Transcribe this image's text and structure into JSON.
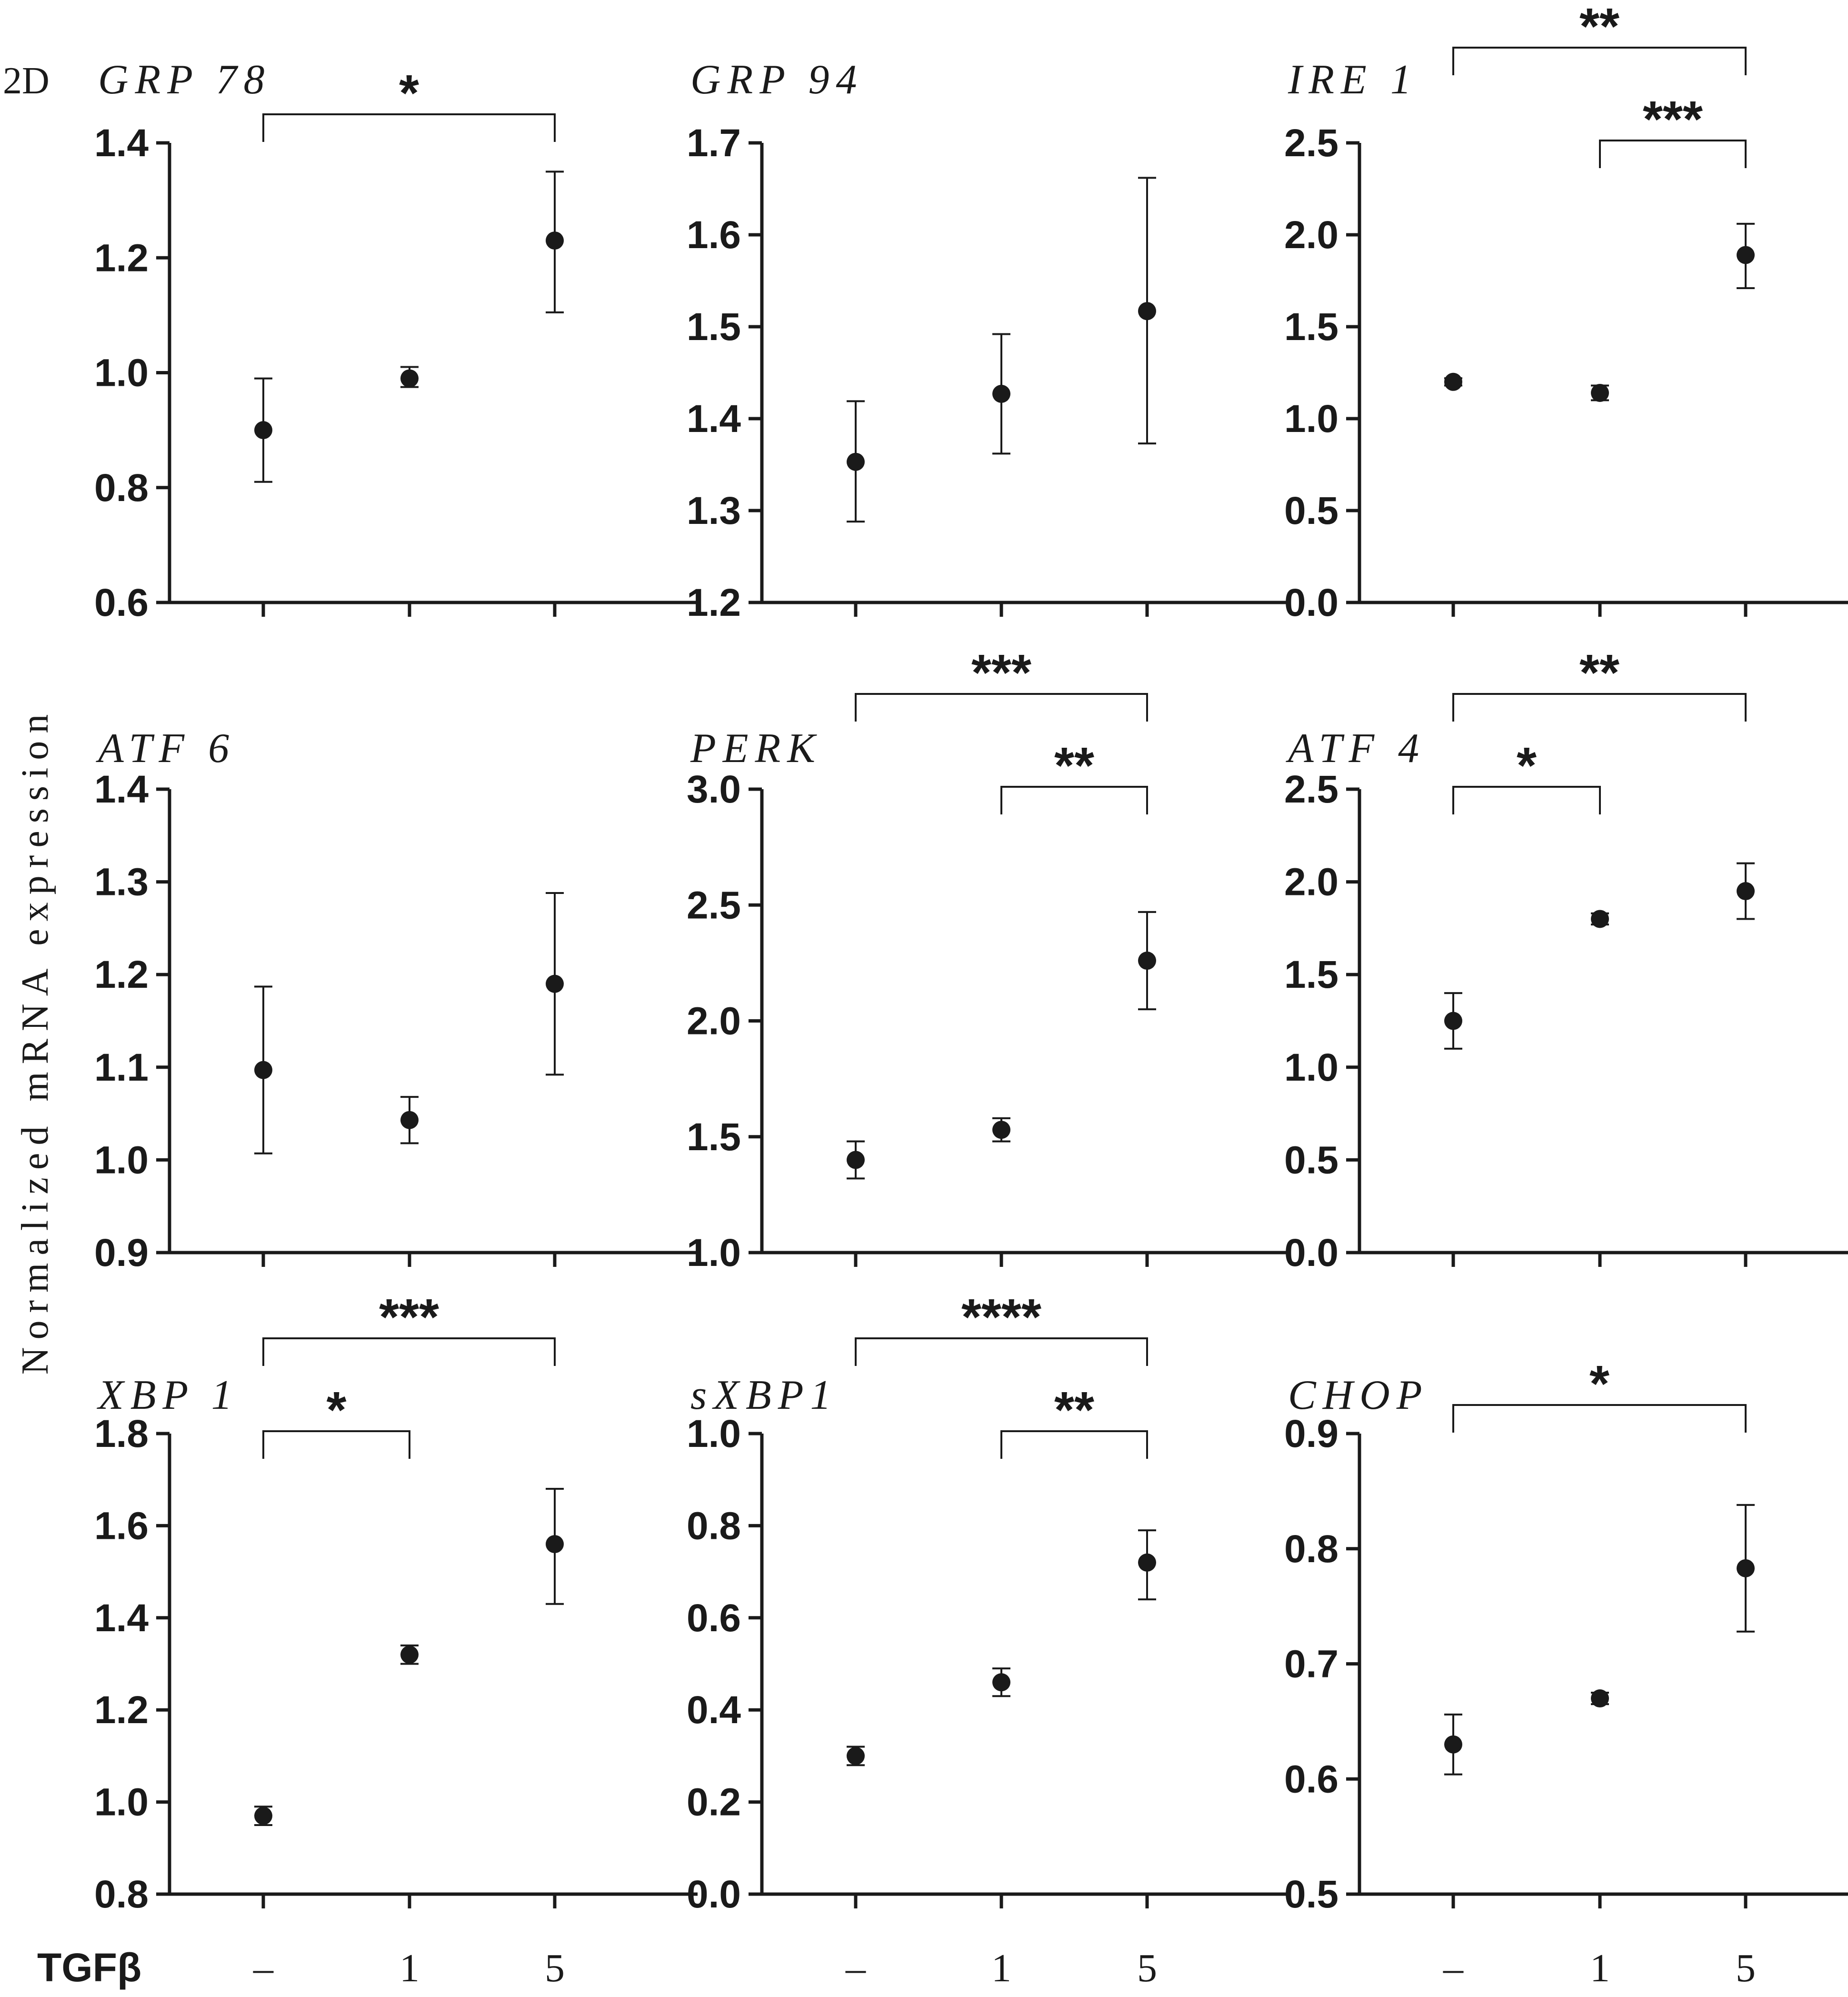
{
  "figure": {
    "panel_label": "2D",
    "y_axis_title": "Normalized mRNA expression",
    "x_variable_label": "TGFβ",
    "x_categories": [
      "–",
      "1",
      "5"
    ]
  },
  "chart_data": [
    {
      "type": "scatter",
      "title": "GRP 78",
      "categories": [
        "–",
        "1",
        "5"
      ],
      "values": [
        0.9,
        0.99,
        1.23
      ],
      "error_low": [
        0.81,
        0.975,
        1.105
      ],
      "error_high": [
        0.99,
        1.01,
        1.35
      ],
      "ylim": [
        0.6,
        1.4
      ],
      "yticks": [
        0.6,
        0.8,
        1.0,
        1.2,
        1.4
      ],
      "ytick_labels": [
        "0.6",
        "0.8",
        "1.0",
        "1.2",
        "1.4"
      ],
      "significance": [
        {
          "from": 0,
          "to": 2,
          "label": "*"
        }
      ]
    },
    {
      "type": "scatter",
      "title": "GRP 94",
      "categories": [
        "–",
        "1",
        "5"
      ],
      "values": [
        1.353,
        1.427,
        1.517
      ],
      "error_low": [
        1.288,
        1.362,
        1.373
      ],
      "error_high": [
        1.419,
        1.492,
        1.662
      ],
      "ylim": [
        1.2,
        1.7
      ],
      "yticks": [
        1.2,
        1.3,
        1.4,
        1.5,
        1.6,
        1.7
      ],
      "ytick_labels": [
        "1.2",
        "1.3",
        "1.4",
        "1.5",
        "1.6",
        "1.7"
      ],
      "significance": []
    },
    {
      "type": "scatter",
      "title": "IRE 1",
      "categories": [
        "–",
        "1",
        "5"
      ],
      "values": [
        1.2,
        1.14,
        1.89
      ],
      "error_low": [
        1.18,
        1.1,
        1.71
      ],
      "error_high": [
        1.22,
        1.18,
        2.06
      ],
      "ylim": [
        0.0,
        2.5
      ],
      "yticks": [
        0.0,
        0.5,
        1.0,
        1.5,
        2.0,
        2.5
      ],
      "ytick_labels": [
        "0.0",
        "0.5",
        "1.0",
        "1.5",
        "2.0",
        "2.5"
      ],
      "significance": [
        {
          "from": 0,
          "to": 2,
          "label": "**"
        },
        {
          "from": 1,
          "to": 2,
          "label": "***"
        }
      ]
    },
    {
      "type": "scatter",
      "title": "ATF 6",
      "categories": [
        "–",
        "1",
        "5"
      ],
      "values": [
        1.097,
        1.043,
        1.19
      ],
      "error_low": [
        1.007,
        1.018,
        1.092
      ],
      "error_high": [
        1.187,
        1.068,
        1.288
      ],
      "ylim": [
        0.9,
        1.4
      ],
      "yticks": [
        0.9,
        1.0,
        1.1,
        1.2,
        1.3,
        1.4
      ],
      "ytick_labels": [
        "0.9",
        "1.0",
        "1.1",
        "1.2",
        "1.3",
        "1.4"
      ],
      "significance": []
    },
    {
      "type": "scatter",
      "title": "PERK",
      "categories": [
        "–",
        "1",
        "5"
      ],
      "values": [
        1.4,
        1.53,
        2.26
      ],
      "error_low": [
        1.32,
        1.48,
        2.05
      ],
      "error_high": [
        1.48,
        1.58,
        2.47
      ],
      "ylim": [
        1.0,
        3.0
      ],
      "yticks": [
        1.0,
        1.5,
        2.0,
        2.5,
        3.0
      ],
      "ytick_labels": [
        "1.0",
        "1.5",
        "2.0",
        "2.5",
        "3.0"
      ],
      "significance": [
        {
          "from": 0,
          "to": 2,
          "label": "***"
        },
        {
          "from": 1,
          "to": 2,
          "label": "**"
        }
      ]
    },
    {
      "type": "scatter",
      "title": "ATF 4",
      "categories": [
        "–",
        "1",
        "5"
      ],
      "values": [
        1.25,
        1.8,
        1.95
      ],
      "error_low": [
        1.1,
        1.77,
        1.8
      ],
      "error_high": [
        1.4,
        1.83,
        2.1
      ],
      "ylim": [
        0.0,
        2.5
      ],
      "yticks": [
        0.0,
        0.5,
        1.0,
        1.5,
        2.0,
        2.5
      ],
      "ytick_labels": [
        "0.0",
        "0.5",
        "1.0",
        "1.5",
        "2.0",
        "2.5"
      ],
      "significance": [
        {
          "from": 0,
          "to": 2,
          "label": "**"
        },
        {
          "from": 0,
          "to": 1,
          "label": "*"
        }
      ]
    },
    {
      "type": "scatter",
      "title": "XBP 1",
      "categories": [
        "–",
        "1",
        "5"
      ],
      "values": [
        0.97,
        1.32,
        1.56
      ],
      "error_low": [
        0.95,
        1.3,
        1.43
      ],
      "error_high": [
        0.99,
        1.34,
        1.68
      ],
      "ylim": [
        0.8,
        1.8
      ],
      "yticks": [
        0.8,
        1.0,
        1.2,
        1.4,
        1.6,
        1.8
      ],
      "ytick_labels": [
        "0.8",
        "1.0",
        "1.2",
        "1.4",
        "1.6",
        "1.8"
      ],
      "significance": [
        {
          "from": 0,
          "to": 2,
          "label": "***"
        },
        {
          "from": 0,
          "to": 1,
          "label": "*"
        }
      ]
    },
    {
      "type": "scatter",
      "title": "sXBP1",
      "categories": [
        "–",
        "1",
        "5"
      ],
      "values": [
        0.3,
        0.46,
        0.72
      ],
      "error_low": [
        0.28,
        0.43,
        0.64
      ],
      "error_high": [
        0.32,
        0.49,
        0.79
      ],
      "ylim": [
        0.0,
        1.0
      ],
      "yticks": [
        0.0,
        0.2,
        0.4,
        0.6,
        0.8,
        1.0
      ],
      "ytick_labels": [
        "0.0",
        "0.2",
        "0.4",
        "0.6",
        "0.8",
        "1.0"
      ],
      "significance": [
        {
          "from": 0,
          "to": 2,
          "label": "****"
        },
        {
          "from": 1,
          "to": 2,
          "label": "**"
        }
      ]
    },
    {
      "type": "scatter",
      "title": "CHOP",
      "categories": [
        "–",
        "1",
        "5"
      ],
      "values": [
        0.63,
        0.67,
        0.783
      ],
      "error_low": [
        0.604,
        0.665,
        0.728
      ],
      "error_high": [
        0.656,
        0.675,
        0.838
      ],
      "ylim": [
        0.5,
        0.9
      ],
      "yticks": [
        0.5,
        0.6,
        0.7,
        0.8,
        0.9
      ],
      "ytick_labels": [
        "0.5",
        "0.6",
        "0.7",
        "0.8",
        "0.9"
      ],
      "significance": [
        {
          "from": 0,
          "to": 2,
          "label": "*"
        }
      ]
    }
  ]
}
